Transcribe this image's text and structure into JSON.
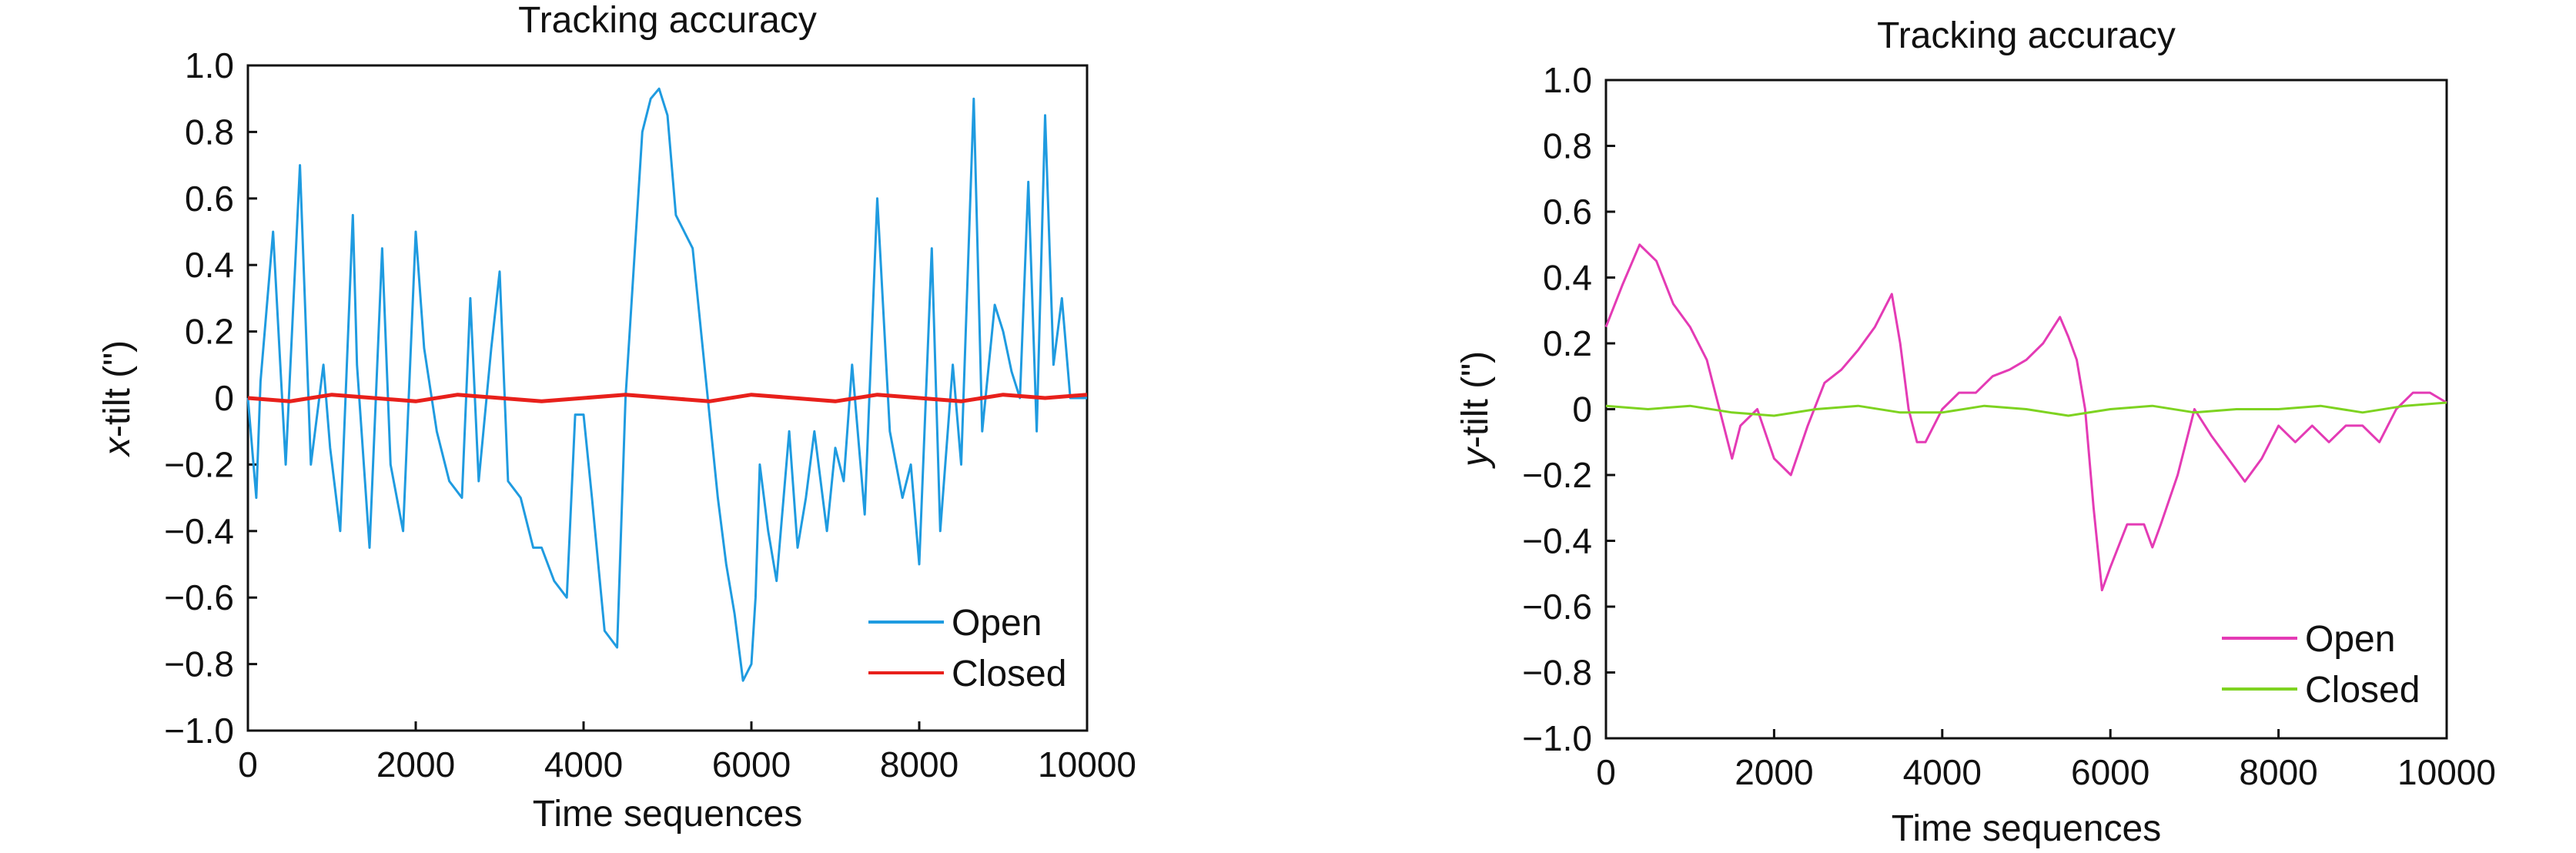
{
  "chart_data": [
    {
      "type": "line",
      "title": "Tracking accuracy",
      "xlabel": "Time sequences",
      "ylabel_italic": "x",
      "ylabel_rest": "-tilt (\")",
      "xlim": [
        0,
        10000
      ],
      "ylim": [
        -1.0,
        1.0
      ],
      "xticks": [
        0,
        2000,
        4000,
        6000,
        8000,
        10000
      ],
      "xtick_labels": [
        "0",
        "2000",
        "4000",
        "6000",
        "8000",
        "10000"
      ],
      "yticks": [
        1.0,
        0.8,
        0.6,
        0.4,
        0.2,
        0,
        -0.2,
        -0.4,
        -0.6,
        -0.8,
        -1.0
      ],
      "ytick_labels": [
        "1.0",
        "0.8",
        "0.6",
        "0.4",
        "0.2",
        "0",
        "−0.2",
        "−0.4",
        "−0.6",
        "−0.8",
        "−1.0"
      ],
      "grid": false,
      "legend_position": "bottom-right",
      "series": [
        {
          "name": "Open",
          "color": "#1f9be0",
          "x": [
            0,
            100,
            150,
            300,
            450,
            620,
            750,
            900,
            980,
            1100,
            1250,
            1300,
            1450,
            1600,
            1700,
            1850,
            2000,
            2100,
            2250,
            2400,
            2550,
            2650,
            2750,
            2900,
            3000,
            3100,
            3250,
            3400,
            3500,
            3650,
            3800,
            3900,
            4000,
            4100,
            4250,
            4400,
            4500,
            4700,
            4800,
            4900,
            5000,
            5100,
            5200,
            5300,
            5400,
            5500,
            5600,
            5700,
            5800,
            5900,
            6000,
            6050,
            6100,
            6200,
            6300,
            6450,
            6550,
            6650,
            6750,
            6900,
            7000,
            7100,
            7200,
            7350,
            7500,
            7650,
            7800,
            7900,
            8000,
            8150,
            8250,
            8400,
            8500,
            8650,
            8750,
            8900,
            9000,
            9100,
            9200,
            9300,
            9400,
            9500,
            9600,
            9700,
            9800,
            9900,
            10000
          ],
          "y": [
            0.0,
            -0.3,
            0.05,
            0.5,
            -0.2,
            0.7,
            -0.2,
            0.1,
            -0.15,
            -0.4,
            0.55,
            0.1,
            -0.45,
            0.45,
            -0.2,
            -0.4,
            0.5,
            0.15,
            -0.1,
            -0.25,
            -0.3,
            0.3,
            -0.25,
            0.15,
            0.38,
            -0.25,
            -0.3,
            -0.45,
            -0.45,
            -0.55,
            -0.6,
            -0.05,
            -0.05,
            -0.3,
            -0.7,
            -0.75,
            0.0,
            0.8,
            0.9,
            0.93,
            0.85,
            0.55,
            0.5,
            0.45,
            0.2,
            -0.05,
            -0.3,
            -0.5,
            -0.65,
            -0.85,
            -0.8,
            -0.6,
            -0.2,
            -0.4,
            -0.55,
            -0.1,
            -0.45,
            -0.3,
            -0.1,
            -0.4,
            -0.15,
            -0.25,
            0.1,
            -0.35,
            0.6,
            -0.1,
            -0.3,
            -0.2,
            -0.5,
            0.45,
            -0.4,
            0.1,
            -0.2,
            0.9,
            -0.1,
            0.28,
            0.2,
            0.08,
            0.0,
            0.65,
            -0.1,
            0.85,
            0.1,
            0.3,
            0.0,
            0.0,
            0.0
          ]
        },
        {
          "name": "Closed",
          "color": "#e8201b",
          "x": [
            0,
            500,
            1000,
            1500,
            2000,
            2500,
            3000,
            3500,
            4000,
            4500,
            5000,
            5500,
            6000,
            6500,
            7000,
            7500,
            8000,
            8500,
            9000,
            9500,
            10000
          ],
          "y": [
            0.0,
            -0.01,
            0.01,
            0.0,
            -0.01,
            0.01,
            0.0,
            -0.01,
            0.0,
            0.01,
            0.0,
            -0.01,
            0.01,
            0.0,
            -0.01,
            0.01,
            0.0,
            -0.01,
            0.01,
            0.0,
            0.01
          ]
        }
      ]
    },
    {
      "type": "line",
      "title": "Tracking accuracy",
      "xlabel": "Time sequences",
      "ylabel_italic": "y",
      "ylabel_rest": "-tilt (\")",
      "xlim": [
        0,
        10000
      ],
      "ylim": [
        -1.0,
        1.0
      ],
      "xticks": [
        0,
        2000,
        4000,
        6000,
        8000,
        10000
      ],
      "xtick_labels": [
        "0",
        "2000",
        "4000",
        "6000",
        "8000",
        "10000"
      ],
      "yticks": [
        1.0,
        0.8,
        0.6,
        0.4,
        0.2,
        0,
        -0.2,
        -0.4,
        -0.6,
        -0.8,
        -1.0
      ],
      "ytick_labels": [
        "1.0",
        "0.8",
        "0.6",
        "0.4",
        "0.2",
        "0",
        "−0.2",
        "−0.4",
        "−0.6",
        "−0.8",
        "−1.0"
      ],
      "grid": false,
      "legend_position": "bottom-right",
      "series": [
        {
          "name": "Open",
          "color": "#e43bb5",
          "x": [
            0,
            200,
            400,
            600,
            800,
            1000,
            1200,
            1400,
            1500,
            1600,
            1800,
            2000,
            2200,
            2400,
            2600,
            2800,
            3000,
            3200,
            3400,
            3500,
            3600,
            3700,
            3800,
            4000,
            4200,
            4400,
            4600,
            4800,
            5000,
            5200,
            5400,
            5500,
            5600,
            5700,
            5800,
            5900,
            6000,
            6200,
            6400,
            6500,
            6600,
            6800,
            7000,
            7200,
            7400,
            7600,
            7800,
            8000,
            8200,
            8400,
            8600,
            8800,
            9000,
            9200,
            9400,
            9600,
            9800,
            10000
          ],
          "y": [
            0.25,
            0.38,
            0.5,
            0.45,
            0.32,
            0.25,
            0.15,
            -0.05,
            -0.15,
            -0.05,
            0.0,
            -0.15,
            -0.2,
            -0.05,
            0.08,
            0.12,
            0.18,
            0.25,
            0.35,
            0.2,
            0.0,
            -0.1,
            -0.1,
            0.0,
            0.05,
            0.05,
            0.1,
            0.12,
            0.15,
            0.2,
            0.28,
            0.22,
            0.15,
            0.0,
            -0.3,
            -0.55,
            -0.48,
            -0.35,
            -0.35,
            -0.42,
            -0.35,
            -0.2,
            0.0,
            -0.08,
            -0.15,
            -0.22,
            -0.15,
            -0.05,
            -0.1,
            -0.05,
            -0.1,
            -0.05,
            -0.05,
            -0.1,
            0.0,
            0.05,
            0.05,
            0.02
          ]
        },
        {
          "name": "Closed",
          "color": "#7ed321",
          "x": [
            0,
            500,
            1000,
            1500,
            2000,
            2500,
            3000,
            3500,
            4000,
            4500,
            5000,
            5500,
            6000,
            6500,
            7000,
            7500,
            8000,
            8500,
            9000,
            9500,
            10000
          ],
          "y": [
            0.01,
            0.0,
            0.01,
            -0.01,
            -0.02,
            0.0,
            0.01,
            -0.01,
            -0.01,
            0.01,
            0.0,
            -0.02,
            0.0,
            0.01,
            -0.01,
            0.0,
            0.0,
            0.01,
            -0.01,
            0.01,
            0.02
          ]
        }
      ]
    }
  ]
}
